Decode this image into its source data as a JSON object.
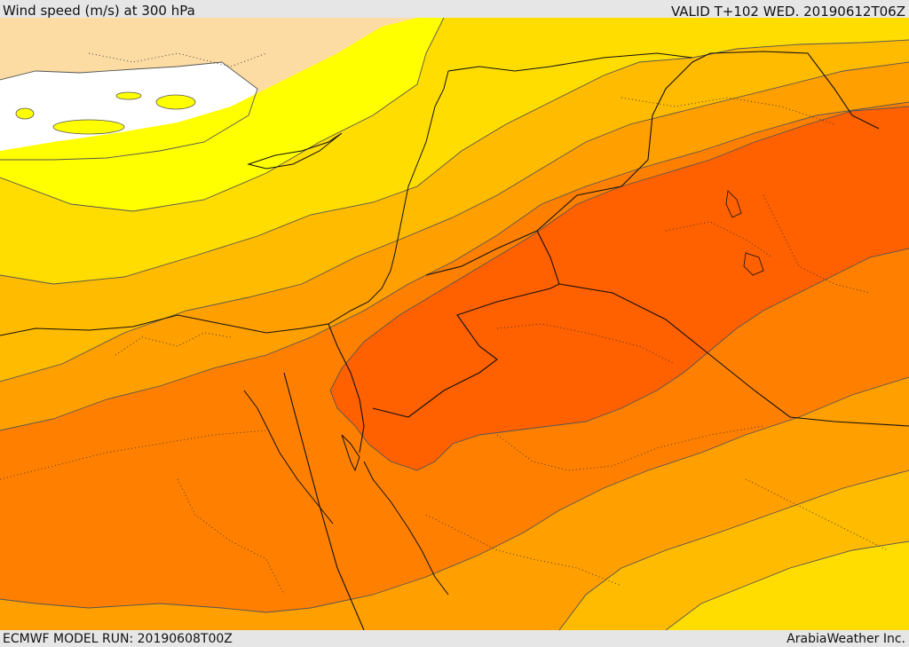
{
  "header": {
    "title": "Wind speed (m/s) at 300 hPa",
    "valid": "VALID T+102 WED. 20190612T06Z"
  },
  "footer": {
    "model_run": "ECMWF MODEL RUN: 20190608T00Z",
    "credit": "ArabiaWeather Inc."
  },
  "map": {
    "field": "wind speed at 300 hPa",
    "colors": {
      "land": "#fddca3",
      "sea": "#ffffff",
      "band_yellow": "#ffff00",
      "band_gold": "#ffdd00",
      "band_amber": "#ffbb00",
      "band_orange_light": "#ff9f00",
      "band_orange": "#ff8000",
      "band_orange_dark": "#ff6000",
      "contour": "#555555",
      "border": "#111111"
    }
  }
}
